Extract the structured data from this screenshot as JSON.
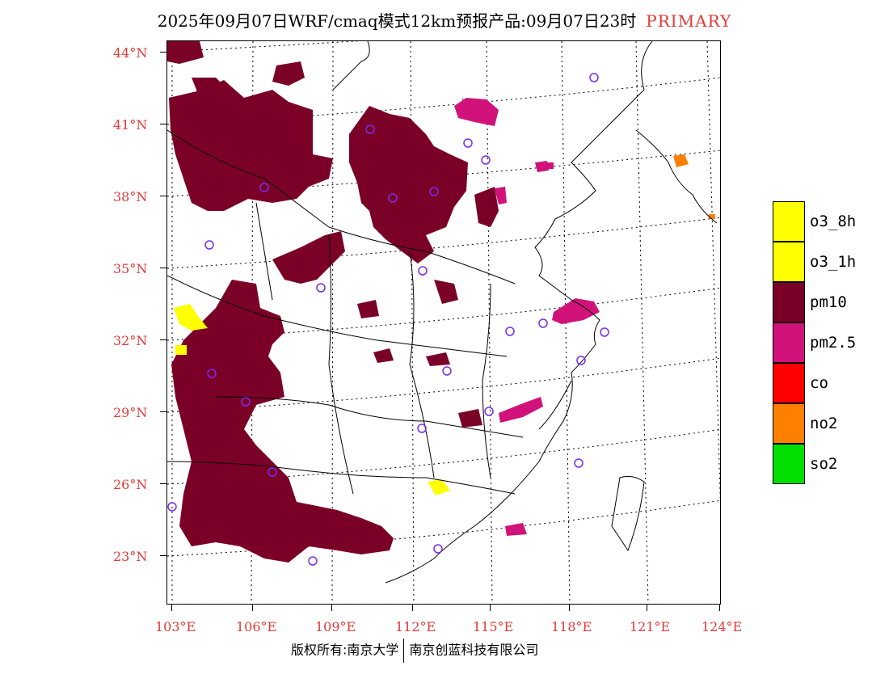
{
  "title": {
    "text": "2025年09月07日WRF/cmaq模式12km预报产品:09月07日23时",
    "tag": "PRIMARY"
  },
  "axes": {
    "lat_labels": [
      "44°N",
      "41°N",
      "38°N",
      "35°N",
      "32°N",
      "29°N",
      "26°N",
      "23°N"
    ],
    "lon_labels": [
      "103°E",
      "106°E",
      "109°E",
      "112°E",
      "115°E",
      "118°E",
      "121°E",
      "124°E"
    ]
  },
  "legend": {
    "items": [
      {
        "label": "o3_8h",
        "color": "#ffff00"
      },
      {
        "label": "o3_1h",
        "color": "#ffff00"
      },
      {
        "label": "pm10",
        "color": "#7b0028"
      },
      {
        "label": "pm2.5",
        "color": "#d0127a"
      },
      {
        "label": "co",
        "color": "#ff0000"
      },
      {
        "label": "no2",
        "color": "#ff7f00"
      },
      {
        "label": "so2",
        "color": "#00e000"
      }
    ]
  },
  "footer": {
    "left": "版权所有:南京大学",
    "right": "南京创蓝科技有限公司"
  },
  "colors": {
    "accent_red": "#e53935",
    "pm10": "#7b0028",
    "pm25": "#d0127a",
    "o3": "#ffff00",
    "no2": "#ff7f00",
    "station": "#7a2cf0"
  },
  "icons": {
    "station_marker": "circle-outline-icon"
  }
}
